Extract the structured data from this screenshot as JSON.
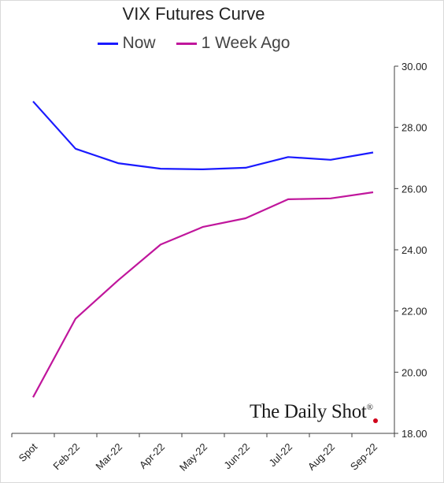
{
  "chart_data": {
    "type": "line",
    "title": "VIX Futures Curve",
    "categories": [
      "Spot",
      "Feb-22",
      "Mar-22",
      "Apr-22",
      "May-22",
      "Jun-22",
      "Jul-22",
      "Aug-22",
      "Sep-22"
    ],
    "series": [
      {
        "name": "Now",
        "color": "#1a1aff",
        "values": [
          28.85,
          27.3,
          26.83,
          26.65,
          26.63,
          26.68,
          27.03,
          26.94,
          27.18
        ]
      },
      {
        "name": "1 Week Ago",
        "color": "#c0169c",
        "values": [
          19.18,
          21.75,
          23.0,
          24.17,
          24.75,
          25.03,
          25.65,
          25.68,
          25.88
        ]
      }
    ],
    "ylim": [
      18,
      30
    ],
    "yticks": [
      "18.00",
      "20.00",
      "22.00",
      "24.00",
      "26.00",
      "28.00",
      "30.00"
    ],
    "xlabel": "",
    "ylabel": "",
    "grid": false,
    "legend": "top-center"
  },
  "watermark": {
    "text": "The Daily Shot",
    "mark": "®",
    "dot_color": "#d0021b"
  }
}
